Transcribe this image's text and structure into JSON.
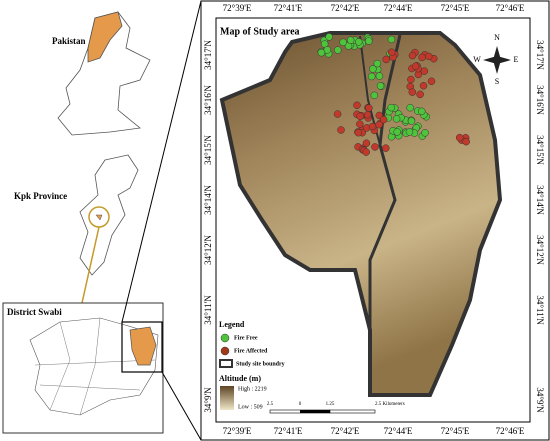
{
  "insets": {
    "pakistan": "Pakistan",
    "kpk": "Kpk Province",
    "district": "District Swabi"
  },
  "map": {
    "title": "Map of Study area",
    "top_labels": [
      "72°39'E",
      "72°41'E",
      "72°42'E",
      "72°44'E",
      "72°45'E",
      "72°46'E"
    ],
    "bottom_labels": [
      "72°39'E",
      "72°41'E",
      "72°42'E",
      "72°44'E",
      "72°45'E",
      "72°46'E"
    ],
    "left_labels": [
      "34°17'N",
      "34°16'N",
      "34°15'N",
      "34°14'N",
      "34°12'N",
      "34°11'N",
      "34°9'N"
    ],
    "right_labels": [
      "34°17'N",
      "34°16'N",
      "34°15'N",
      "34°14'N",
      "34°12'N",
      "34°11'N",
      "34°9'N"
    ],
    "compass": {
      "n": "N",
      "e": "E",
      "s": "S",
      "w": "W"
    },
    "legend": {
      "title": "Legend",
      "items": [
        "Fire Free",
        "Fire Affected",
        "Study site boundry"
      ],
      "altitude_title": "Altitude (m)",
      "high": "High : 2219",
      "low": "Low : 509"
    },
    "scale": [
      "2.5",
      "0",
      "1.25",
      "2.5 Kilometers"
    ]
  }
}
